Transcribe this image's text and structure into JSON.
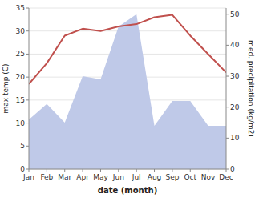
{
  "chart_data": {
    "type": "line",
    "xlabel": "date (month)",
    "ylabel": "max temp (C)",
    "y2label": "med. precipitation (kg/m2)",
    "categories": [
      "Jan",
      "Feb",
      "Mar",
      "Apr",
      "May",
      "Jun",
      "Jul",
      "Aug",
      "Sep",
      "Oct",
      "Nov",
      "Dec"
    ],
    "series": [
      {
        "type": "area",
        "axis": "y2",
        "color": "#bfc9e8",
        "values": [
          16,
          21,
          15,
          30,
          29,
          46,
          50,
          14,
          22,
          22,
          14,
          14
        ]
      },
      {
        "type": "line",
        "color": "#c0504d",
        "values": [
          18.5,
          23,
          29,
          30.5,
          30,
          31,
          31.5,
          33,
          33.5,
          29,
          25,
          21
        ]
      }
    ],
    "ylim": [
      0,
      35
    ],
    "yticks": [
      0,
      5,
      10,
      15,
      20,
      25,
      30,
      35
    ],
    "y2lim": [
      0,
      52
    ],
    "y2ticks": [
      0,
      10,
      20,
      30,
      40,
      50
    ],
    "grid": true
  }
}
